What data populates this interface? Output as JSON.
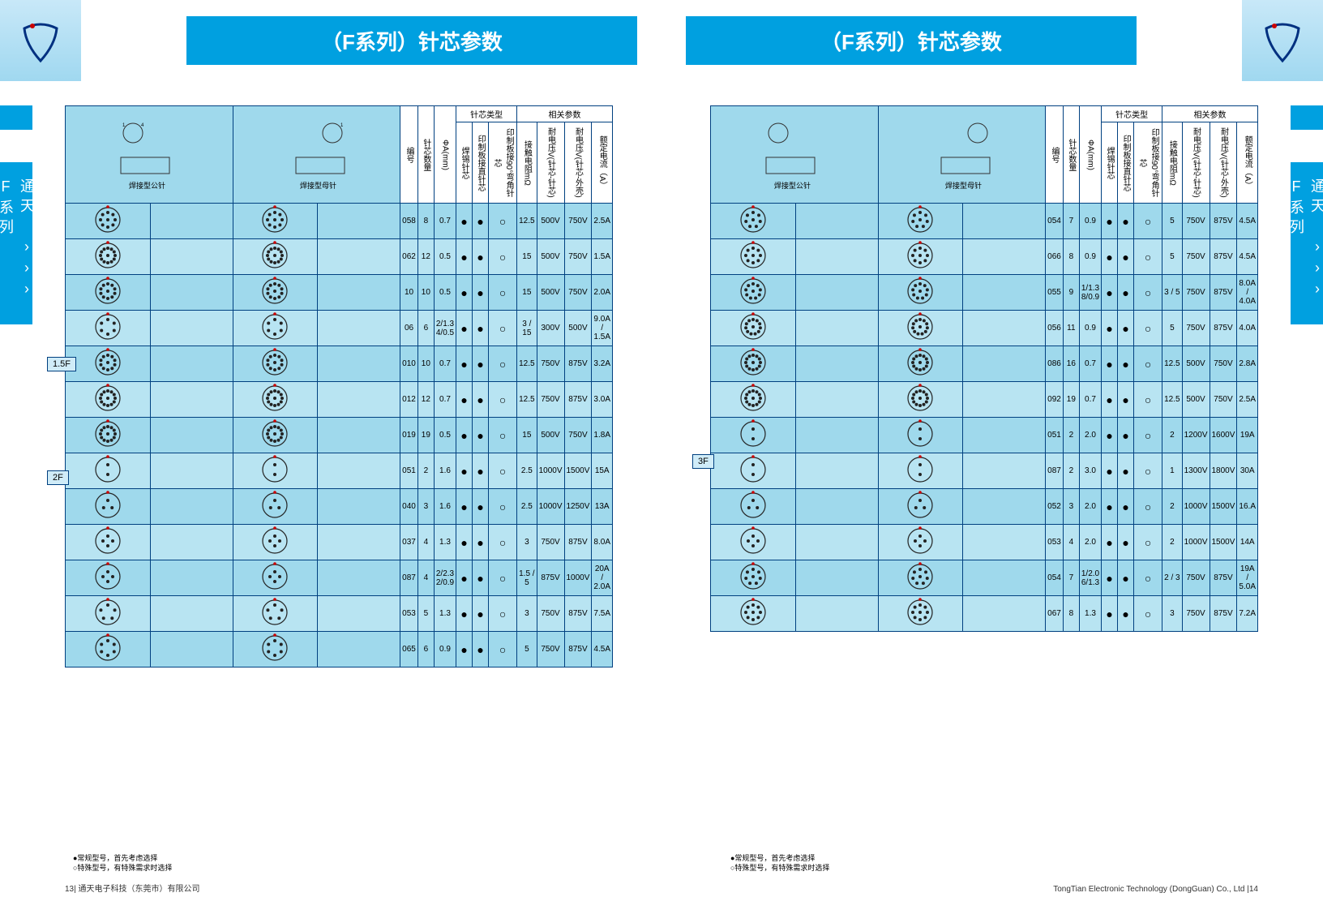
{
  "title_left": "（F系列）针芯参数",
  "title_right": "（F系列）针芯参数",
  "side_tab": "通天 ››› F系列",
  "header_cols": {
    "img_col1": "焊接型公针",
    "img_col2": "焊接型母针",
    "model": "编号",
    "pins": "针芯数量",
    "dia": "ΦA(mm)",
    "t1": "焊锡针芯",
    "t2": "印制板接直针芯",
    "t3": "印制板接90°弯角针芯",
    "p1": "接触电阻mΩ",
    "p2": "耐电压V(针芯-针芯)",
    "p3": "耐电压V(针芯-外壳)",
    "p4": "额定电流（A）",
    "grp_type": "针芯类型",
    "grp_param": "相关参数"
  },
  "legend_line1": "●常规型号，首先考虑选择",
  "legend_line2": "○特殊型号，有特殊需求时选择",
  "footer_left": "13| 通天电子科技（东莞市）有限公司",
  "footer_right": "TongTian Electronic Technology (DongGuan) Co., Ltd |14",
  "section_labels": {
    "s15f": "1.5F",
    "s2f": "2F",
    "s3f": "3F"
  },
  "table_left": [
    {
      "model": "058",
      "pins": "8",
      "dia": "0.7",
      "t1": "●",
      "t2": "●",
      "t3": "○",
      "p1": "12.5",
      "p2": "500V",
      "p3": "750V",
      "p4": "2.5A"
    },
    {
      "model": "062",
      "pins": "12",
      "dia": "0.5",
      "t1": "●",
      "t2": "●",
      "t3": "○",
      "p1": "15",
      "p2": "500V",
      "p3": "750V",
      "p4": "1.5A"
    },
    {
      "model": "10",
      "pins": "10",
      "dia": "0.5",
      "t1": "●",
      "t2": "●",
      "t3": "○",
      "p1": "15",
      "p2": "500V",
      "p3": "750V",
      "p4": "2.0A"
    },
    {
      "model": "06",
      "pins": "6",
      "dia": "2/1.3  4/0.5",
      "t1": "●",
      "t2": "●",
      "t3": "○",
      "p1": "3 / 15",
      "p2": "300V",
      "p3": "500V",
      "p4": "9.0A / 1.5A",
      "split": true
    },
    {
      "model": "010",
      "pins": "10",
      "dia": "0.7",
      "t1": "●",
      "t2": "●",
      "t3": "○",
      "p1": "12.5",
      "p2": "750V",
      "p3": "875V",
      "p4": "3.2A"
    },
    {
      "model": "012",
      "pins": "12",
      "dia": "0.7",
      "t1": "●",
      "t2": "●",
      "t3": "○",
      "p1": "12.5",
      "p2": "750V",
      "p3": "875V",
      "p4": "3.0A"
    },
    {
      "model": "019",
      "pins": "19",
      "dia": "0.5",
      "t1": "●",
      "t2": "●",
      "t3": "○",
      "p1": "15",
      "p2": "500V",
      "p3": "750V",
      "p4": "1.8A"
    },
    {
      "model": "051",
      "pins": "2",
      "dia": "1.6",
      "t1": "●",
      "t2": "●",
      "t3": "○",
      "p1": "2.5",
      "p2": "1000V",
      "p3": "1500V",
      "p4": "15A"
    },
    {
      "model": "040",
      "pins": "3",
      "dia": "1.6",
      "t1": "●",
      "t2": "●",
      "t3": "○",
      "p1": "2.5",
      "p2": "1000V",
      "p3": "1250V",
      "p4": "13A"
    },
    {
      "model": "037",
      "pins": "4",
      "dia": "1.3",
      "t1": "●",
      "t2": "●",
      "t3": "○",
      "p1": "3",
      "p2": "750V",
      "p3": "875V",
      "p4": "8.0A"
    },
    {
      "model": "087",
      "pins": "4",
      "dia": "2/2.3  2/0.9",
      "t1": "●",
      "t2": "●",
      "t3": "○",
      "p1": "1.5 / 5",
      "p2": "875V",
      "p3": "1000V",
      "p4": "20A / 2.0A",
      "split": true
    },
    {
      "model": "053",
      "pins": "5",
      "dia": "1.3",
      "t1": "●",
      "t2": "●",
      "t3": "○",
      "p1": "3",
      "p2": "750V",
      "p3": "875V",
      "p4": "7.5A"
    },
    {
      "model": "065",
      "pins": "6",
      "dia": "0.9",
      "t1": "●",
      "t2": "●",
      "t3": "○",
      "p1": "5",
      "p2": "750V",
      "p3": "875V",
      "p4": "4.5A"
    }
  ],
  "table_right": [
    {
      "model": "054",
      "pins": "7",
      "dia": "0.9",
      "t1": "●",
      "t2": "●",
      "t3": "○",
      "p1": "5",
      "p2": "750V",
      "p3": "875V",
      "p4": "4.5A"
    },
    {
      "model": "066",
      "pins": "8",
      "dia": "0.9",
      "t1": "●",
      "t2": "●",
      "t3": "○",
      "p1": "5",
      "p2": "750V",
      "p3": "875V",
      "p4": "4.5A"
    },
    {
      "model": "055",
      "pins": "9",
      "dia": "1/1.3  8/0.9",
      "t1": "●",
      "t2": "●",
      "t3": "○",
      "p1": "3 / 5",
      "p2": "750V",
      "p3": "875V",
      "p4": "8.0A / 4.0A",
      "split": true
    },
    {
      "model": "056",
      "pins": "11",
      "dia": "0.9",
      "t1": "●",
      "t2": "●",
      "t3": "○",
      "p1": "5",
      "p2": "750V",
      "p3": "875V",
      "p4": "4.0A"
    },
    {
      "model": "086",
      "pins": "16",
      "dia": "0.7",
      "t1": "●",
      "t2": "●",
      "t3": "○",
      "p1": "12.5",
      "p2": "500V",
      "p3": "750V",
      "p4": "2.8A"
    },
    {
      "model": "092",
      "pins": "19",
      "dia": "0.7",
      "t1": "●",
      "t2": "●",
      "t3": "○",
      "p1": "12.5",
      "p2": "500V",
      "p3": "750V",
      "p4": "2.5A"
    },
    {
      "model": "051",
      "pins": "2",
      "dia": "2.0",
      "t1": "●",
      "t2": "●",
      "t3": "○",
      "p1": "2",
      "p2": "1200V",
      "p3": "1600V",
      "p4": "19A"
    },
    {
      "model": "087",
      "pins": "2",
      "dia": "3.0",
      "t1": "●",
      "t2": "●",
      "t3": "○",
      "p1": "1",
      "p2": "1300V",
      "p3": "1800V",
      "p4": "30A"
    },
    {
      "model": "052",
      "pins": "3",
      "dia": "2.0",
      "t1": "●",
      "t2": "●",
      "t3": "○",
      "p1": "2",
      "p2": "1000V",
      "p3": "1500V",
      "p4": "16.A"
    },
    {
      "model": "053",
      "pins": "4",
      "dia": "2.0",
      "t1": "●",
      "t2": "●",
      "t3": "○",
      "p1": "2",
      "p2": "1000V",
      "p3": "1500V",
      "p4": "14A"
    },
    {
      "model": "054",
      "pins": "7",
      "dia": "1/2.0  6/1.3",
      "t1": "●",
      "t2": "●",
      "t3": "○",
      "p1": "2 / 3",
      "p2": "750V",
      "p3": "875V",
      "p4": "19A / 5.0A",
      "split": true
    },
    {
      "model": "067",
      "pins": "8",
      "dia": "1.3",
      "t1": "●",
      "t2": "●",
      "t3": "○",
      "p1": "3",
      "p2": "750V",
      "p3": "875V",
      "p4": "7.2A"
    }
  ]
}
